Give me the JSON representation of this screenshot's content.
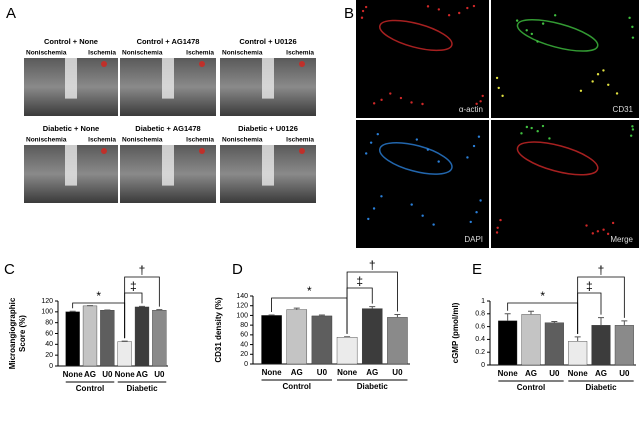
{
  "panel_a": {
    "label": "A",
    "images": [
      {
        "title": "Control + None",
        "left": "Nonischemia",
        "right": "Ischemia"
      },
      {
        "title": "Control + AG1478",
        "left": "Nonischemia",
        "right": "Ischemia"
      },
      {
        "title": "Control + U0126",
        "left": "Nonischemia",
        "right": "Ischemia"
      },
      {
        "title": "Diabetic + None",
        "left": "Nonischemia",
        "right": "Ischemia"
      },
      {
        "title": "Diabetic + AG1478",
        "left": "Nonischemia",
        "right": "Ischemia"
      },
      {
        "title": "Diabetic + U0126",
        "left": "Nonischemia",
        "right": "Ischemia"
      }
    ]
  },
  "panel_b": {
    "label": "B",
    "images": [
      "α-actin",
      "CD31",
      "DAPI",
      "Merge"
    ]
  },
  "chart_data": [
    {
      "type": "bar",
      "panel": "C",
      "y_label": [
        "Microangiographic",
        "Score (%)"
      ],
      "categories": [
        "None",
        "AG",
        "U0",
        "None",
        "AG",
        "U0"
      ],
      "groups": [
        "Control",
        "Diabetic"
      ],
      "values": [
        100,
        111,
        103,
        45,
        109,
        103
      ],
      "errors": [
        1,
        0.5,
        0.5,
        1,
        1,
        1
      ],
      "colors": [
        "#000000",
        "#c4c4c4",
        "#5e5e5e",
        "#ebebeb",
        "#3c3c3c",
        "#8a8a8a"
      ],
      "ylim": [
        0,
        120
      ],
      "yticks": [
        0,
        20,
        40,
        60,
        80,
        100,
        120
      ],
      "annotations": [
        "*",
        "‡",
        "†"
      ]
    },
    {
      "type": "bar",
      "panel": "D",
      "y_label": [
        "CD31 density (%)"
      ],
      "categories": [
        "None",
        "AG",
        "U0",
        "None",
        "AG",
        "U0"
      ],
      "groups": [
        "Control",
        "Diabetic"
      ],
      "values": [
        100,
        112,
        99,
        55,
        114,
        96
      ],
      "errors": [
        1,
        3,
        2,
        1,
        4,
        6
      ],
      "colors": [
        "#000000",
        "#c4c4c4",
        "#5e5e5e",
        "#ebebeb",
        "#3c3c3c",
        "#8a8a8a"
      ],
      "ylim": [
        0,
        140
      ],
      "yticks": [
        0,
        20,
        40,
        60,
        80,
        100,
        120,
        140
      ],
      "annotations": [
        "*",
        "‡",
        "†"
      ]
    },
    {
      "type": "bar",
      "panel": "E",
      "y_label": [
        "cGMP (pmol/ml)"
      ],
      "categories": [
        "None",
        "AG",
        "U0",
        "None",
        "AG",
        "U0"
      ],
      "groups": [
        "Control",
        "Diabetic"
      ],
      "values": [
        0.69,
        0.79,
        0.66,
        0.37,
        0.62,
        0.62
      ],
      "errors": [
        0.11,
        0.05,
        0.02,
        0.07,
        0.12,
        0.07
      ],
      "colors": [
        "#000000",
        "#c4c4c4",
        "#5e5e5e",
        "#ebebeb",
        "#3c3c3c",
        "#8a8a8a"
      ],
      "ylim": [
        0,
        1
      ],
      "yticks": [
        0,
        0.2,
        0.4,
        0.6,
        0.8,
        1
      ],
      "annotations": [
        "*",
        "‡",
        "†"
      ]
    }
  ]
}
